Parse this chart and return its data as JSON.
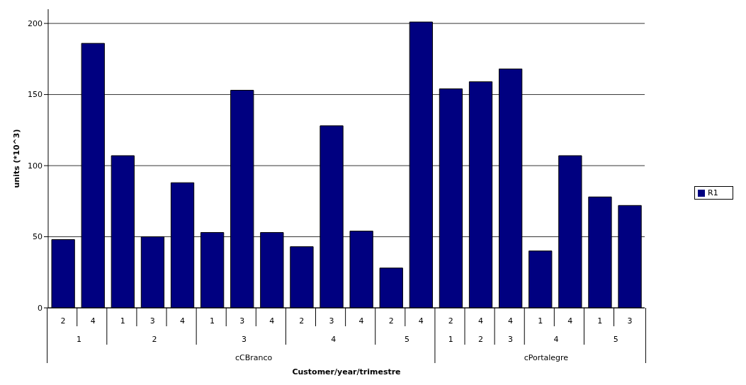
{
  "chart_data": {
    "type": "bar",
    "ylabel": "units (*10^3)",
    "categories": [
      "2",
      "4",
      "1",
      "3",
      "4",
      "1",
      "3",
      "4",
      "2",
      "3",
      "4",
      "2",
      "4",
      "2",
      "4",
      "4",
      "1",
      "4",
      "1",
      "3"
    ],
    "series": [
      {
        "name": "R1",
        "color": "#000080",
        "values": [
          48,
          186,
          107,
          50,
          88,
          53,
          153,
          53,
          43,
          128,
          54,
          28,
          201,
          154,
          159,
          168,
          40,
          107,
          78,
          72
        ]
      }
    ],
    "ylim": [
      0,
      210
    ],
    "yticks": [
      0,
      50,
      100,
      150,
      200
    ],
    "grid": "y",
    "legend": "right",
    "annotations": [
      "1",
      "2",
      "3",
      "4",
      "5",
      "1",
      "2",
      "3",
      "4",
      "5",
      "cCBranco",
      "cPortalegre",
      "Customer/year/trimestre"
    ]
  }
}
